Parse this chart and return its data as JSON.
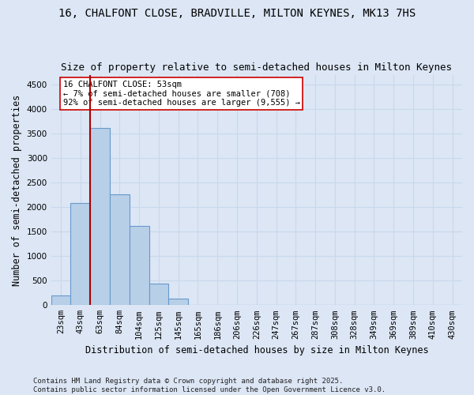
{
  "title1": "16, CHALFONT CLOSE, BRADVILLE, MILTON KEYNES, MK13 7HS",
  "title2": "Size of property relative to semi-detached houses in Milton Keynes",
  "xlabel": "Distribution of semi-detached houses by size in Milton Keynes",
  "ylabel": "Number of semi-detached properties",
  "categories": [
    "23sqm",
    "43sqm",
    "63sqm",
    "84sqm",
    "104sqm",
    "125sqm",
    "145sqm",
    "165sqm",
    "186sqm",
    "206sqm",
    "226sqm",
    "247sqm",
    "267sqm",
    "287sqm",
    "308sqm",
    "328sqm",
    "349sqm",
    "369sqm",
    "389sqm",
    "410sqm",
    "430sqm"
  ],
  "values": [
    200,
    2090,
    3620,
    2260,
    1620,
    440,
    130,
    0,
    0,
    0,
    0,
    0,
    0,
    0,
    0,
    0,
    0,
    0,
    0,
    0,
    0
  ],
  "bar_color": "#b8cfe8",
  "bar_edge_color": "#6699cc",
  "property_line_x": 1.5,
  "annotation_text": "16 CHALFONT CLOSE: 53sqm\n← 7% of semi-detached houses are smaller (708)\n92% of semi-detached houses are larger (9,555) →",
  "annotation_box_color": "#ffffff",
  "annotation_box_edge_color": "#cc0000",
  "vline_color": "#aa0000",
  "ylim": [
    0,
    4700
  ],
  "yticks": [
    0,
    500,
    1000,
    1500,
    2000,
    2500,
    3000,
    3500,
    4000,
    4500
  ],
  "footer": "Contains HM Land Registry data © Crown copyright and database right 2025.\nContains public sector information licensed under the Open Government Licence v3.0.",
  "bg_color": "#dce6f5",
  "plot_bg_color": "#dce6f5",
  "grid_color": "#c8d8ec",
  "title_fontsize": 10,
  "subtitle_fontsize": 9,
  "axis_label_fontsize": 8.5,
  "tick_fontsize": 7.5,
  "annot_fontsize": 7.5,
  "footer_fontsize": 6.5
}
